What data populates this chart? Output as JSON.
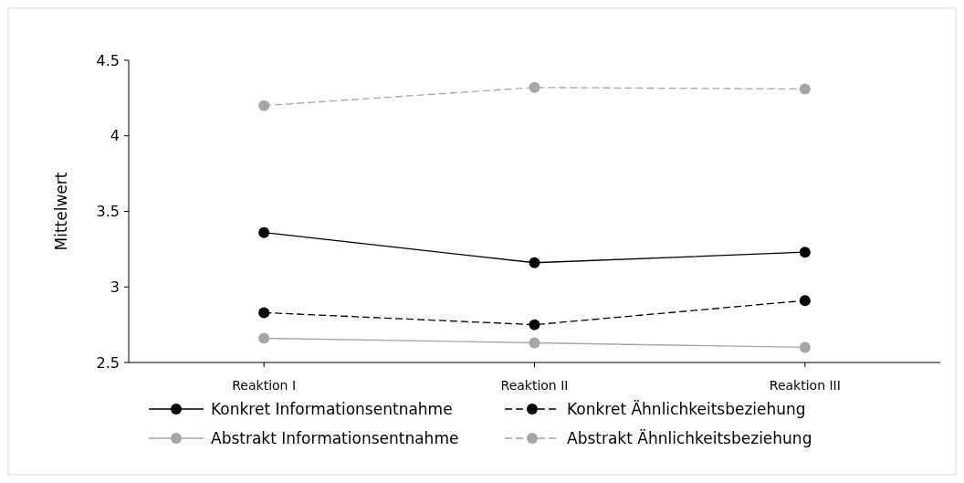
{
  "chart_data": {
    "type": "line",
    "ylabel": "Mittelwert",
    "categories": [
      "Reaktion I",
      "Reaktion II",
      "Reaktion III"
    ],
    "ylim": [
      2.5,
      4.5
    ],
    "yticks": [
      2.5,
      3,
      3.5,
      4,
      4.5
    ],
    "grid": false,
    "legend": "bottom",
    "marker": "circle",
    "series": [
      {
        "name": "Konkret Informationsentnahme",
        "color": "#000000",
        "line_style": "solid",
        "values": [
          3.36,
          3.16,
          3.23
        ]
      },
      {
        "name": "Konkret Ähnlichkeitsbeziehung",
        "color": "#000000",
        "line_style": "dashed",
        "values": [
          2.83,
          2.75,
          2.91
        ]
      },
      {
        "name": "Abstrakt Informationsentnahme",
        "color": "#a6a6a6",
        "line_style": "solid",
        "values": [
          2.66,
          2.63,
          2.6
        ]
      },
      {
        "name": "Abstrakt Ähnlichkeitsbeziehung",
        "color": "#a6a6a6",
        "line_style": "dashed",
        "values": [
          4.2,
          4.32,
          4.31
        ]
      }
    ]
  }
}
